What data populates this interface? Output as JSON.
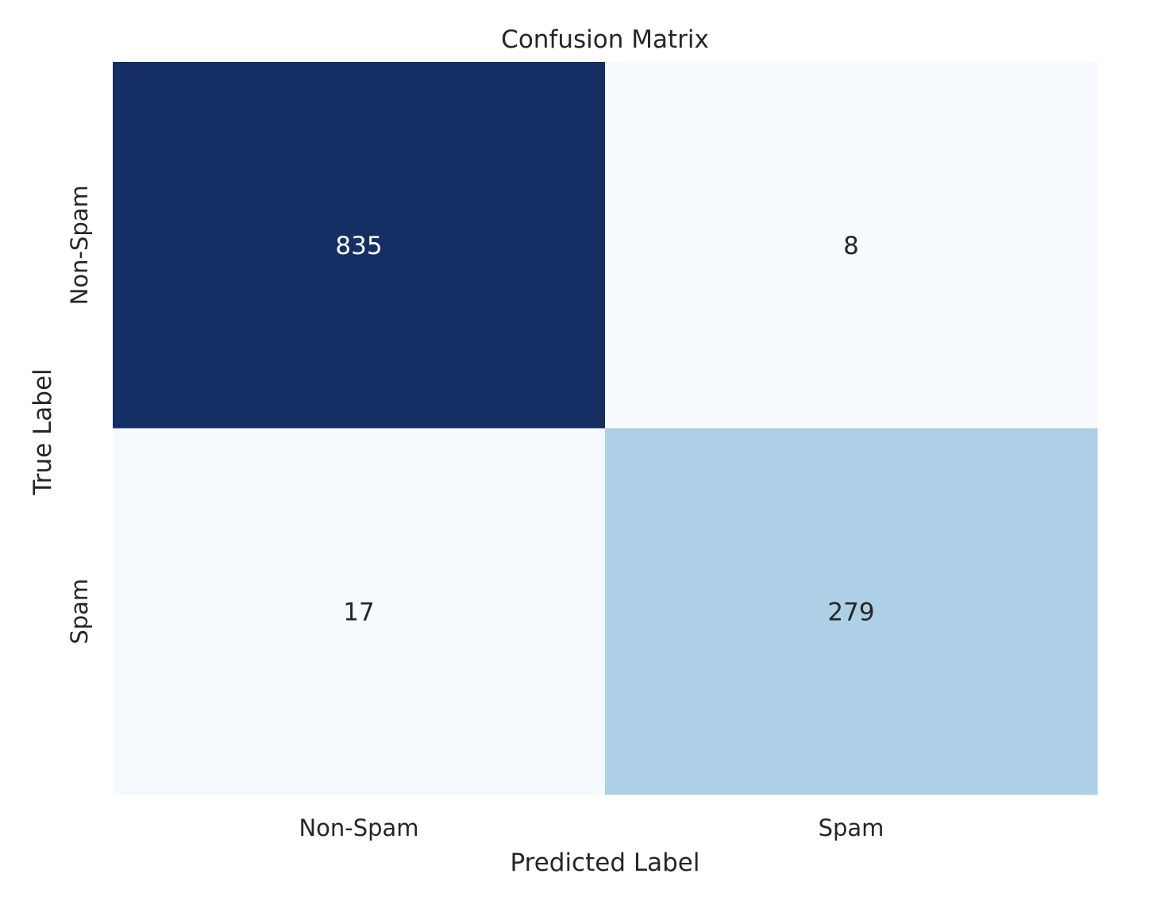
{
  "chart_data": {
    "type": "heatmap",
    "title": "Confusion Matrix",
    "xlabel": "Predicted Label",
    "ylabel": "True Label",
    "x_categories": [
      "Non-Spam",
      "Spam"
    ],
    "y_categories": [
      "Non-Spam",
      "Spam"
    ],
    "values": [
      [
        835,
        8
      ],
      [
        17,
        279
      ]
    ],
    "colormap": "Blues",
    "color_low": "#f7fbff",
    "color_high": "#152e64",
    "text_color_dark": "#262626",
    "text_color_light": "#f7fbff",
    "colorbar": false,
    "grid": false
  }
}
